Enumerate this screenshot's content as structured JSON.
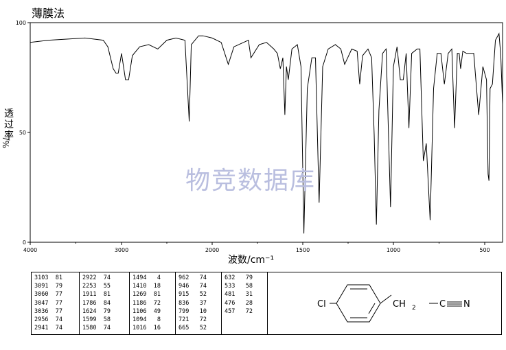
{
  "header": {
    "method": "薄膜法"
  },
  "watermark": "物竞数据库",
  "axes": {
    "ylabel": "透过率",
    "yunit": "%/",
    "xlabel": "波数/cm⁻¹"
  },
  "chart_data": {
    "type": "line",
    "xlim": [
      4000,
      400
    ],
    "ylim": [
      0,
      100
    ],
    "x_ticks": [
      "4000",
      "3000",
      "2000",
      "1500",
      "1000",
      "500"
    ],
    "y_ticks": [
      "100",
      "50",
      "0"
    ],
    "series": [
      {
        "points": [
          [
            4000,
            91
          ],
          [
            3800,
            92
          ],
          [
            3600,
            92.5
          ],
          [
            3400,
            93
          ],
          [
            3200,
            92
          ],
          [
            3150,
            89
          ],
          [
            3103,
            81
          ],
          [
            3091,
            79
          ],
          [
            3060,
            77
          ],
          [
            3047,
            77
          ],
          [
            3036,
            77
          ],
          [
            3000,
            86
          ],
          [
            2956,
            74
          ],
          [
            2941,
            74
          ],
          [
            2922,
            74
          ],
          [
            2880,
            85
          ],
          [
            2800,
            89
          ],
          [
            2700,
            90
          ],
          [
            2600,
            88
          ],
          [
            2500,
            92
          ],
          [
            2400,
            93
          ],
          [
            2300,
            92
          ],
          [
            2253,
            55
          ],
          [
            2230,
            90
          ],
          [
            2150,
            94
          ],
          [
            2100,
            94
          ],
          [
            2000,
            93
          ],
          [
            1950,
            91
          ],
          [
            1911,
            81
          ],
          [
            1880,
            89
          ],
          [
            1800,
            92
          ],
          [
            1786,
            84
          ],
          [
            1740,
            90
          ],
          [
            1700,
            91
          ],
          [
            1660,
            88
          ],
          [
            1640,
            86
          ],
          [
            1624,
            79
          ],
          [
            1610,
            84
          ],
          [
            1599,
            58
          ],
          [
            1590,
            80
          ],
          [
            1580,
            74
          ],
          [
            1560,
            88
          ],
          [
            1530,
            90
          ],
          [
            1510,
            80
          ],
          [
            1494,
            4
          ],
          [
            1475,
            70
          ],
          [
            1450,
            84
          ],
          [
            1430,
            84
          ],
          [
            1410,
            18
          ],
          [
            1390,
            80
          ],
          [
            1360,
            88
          ],
          [
            1320,
            90
          ],
          [
            1290,
            88
          ],
          [
            1269,
            81
          ],
          [
            1230,
            88
          ],
          [
            1200,
            87
          ],
          [
            1186,
            72
          ],
          [
            1170,
            85
          ],
          [
            1140,
            88
          ],
          [
            1120,
            84
          ],
          [
            1106,
            49
          ],
          [
            1094,
            8
          ],
          [
            1080,
            60
          ],
          [
            1060,
            86
          ],
          [
            1040,
            88
          ],
          [
            1016,
            16
          ],
          [
            1000,
            80
          ],
          [
            980,
            89
          ],
          [
            962,
            74
          ],
          [
            946,
            74
          ],
          [
            930,
            86
          ],
          [
            915,
            52
          ],
          [
            900,
            86
          ],
          [
            870,
            88
          ],
          [
            855,
            88
          ],
          [
            836,
            37
          ],
          [
            820,
            45
          ],
          [
            799,
            10
          ],
          [
            780,
            70
          ],
          [
            760,
            86
          ],
          [
            740,
            86
          ],
          [
            721,
            72
          ],
          [
            700,
            86
          ],
          [
            680,
            88
          ],
          [
            665,
            52
          ],
          [
            650,
            86
          ],
          [
            640,
            86
          ],
          [
            632,
            79
          ],
          [
            620,
            87
          ],
          [
            600,
            86
          ],
          [
            560,
            86
          ],
          [
            533,
            58
          ],
          [
            510,
            80
          ],
          [
            490,
            74
          ],
          [
            481,
            31
          ],
          [
            476,
            28
          ],
          [
            470,
            70
          ],
          [
            457,
            72
          ],
          [
            440,
            92
          ],
          [
            420,
            95
          ],
          [
            410,
            85
          ],
          [
            400,
            63
          ]
        ]
      }
    ]
  },
  "peak_table": {
    "columns": [
      [
        [
          "3103",
          "81"
        ],
        [
          "3091",
          "79"
        ],
        [
          "3060",
          "77"
        ],
        [
          "3047",
          "77"
        ],
        [
          "3036",
          "77"
        ],
        [
          "2956",
          "74"
        ],
        [
          "2941",
          "74"
        ]
      ],
      [
        [
          "2922",
          "74"
        ],
        [
          "2253",
          "55"
        ],
        [
          "1911",
          "81"
        ],
        [
          "1786",
          "84"
        ],
        [
          "1624",
          "79"
        ],
        [
          "1599",
          "58"
        ],
        [
          "1580",
          "74"
        ]
      ],
      [
        [
          "1494",
          "4"
        ],
        [
          "1410",
          "18"
        ],
        [
          "1269",
          "81"
        ],
        [
          "1186",
          "72"
        ],
        [
          "1106",
          "49"
        ],
        [
          "1094",
          "8"
        ],
        [
          "1016",
          "16"
        ]
      ],
      [
        [
          "962",
          "74"
        ],
        [
          "946",
          "74"
        ],
        [
          "915",
          "52"
        ],
        [
          "836",
          "37"
        ],
        [
          "799",
          "10"
        ],
        [
          "721",
          "72"
        ],
        [
          "665",
          "52"
        ]
      ],
      [
        [
          "632",
          "79"
        ],
        [
          "533",
          "58"
        ],
        [
          "481",
          "31"
        ],
        [
          "476",
          "28"
        ],
        [
          "457",
          "72"
        ]
      ]
    ]
  },
  "structure": {
    "cl": "Cl",
    "ch2": "CH",
    "sub2": "2",
    "c": "C",
    "n": "N"
  }
}
